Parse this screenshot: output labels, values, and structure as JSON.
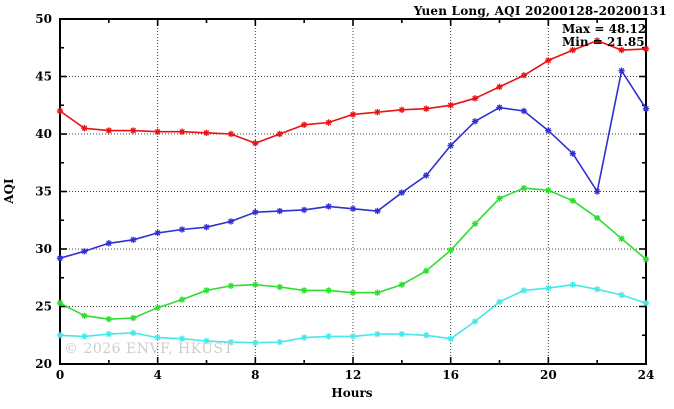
{
  "chart_data": {
    "type": "line",
    "title": "Yuen Long, AQI 20200128-20200131",
    "xlabel": "Hours",
    "ylabel": "AQI",
    "xlim": [
      0,
      24
    ],
    "ylim": [
      20,
      50
    ],
    "grid": true,
    "legend": "none",
    "x_major_ticks": [
      0,
      4,
      8,
      12,
      16,
      20,
      24
    ],
    "x_minor_ticks": [
      2,
      6,
      10,
      14,
      18,
      22
    ],
    "y_major_ticks": [
      20,
      25,
      30,
      35,
      40,
      45,
      50
    ],
    "y_minor_ticks": [
      22.5,
      27.5,
      32.5,
      37.5,
      42.5,
      47.5
    ],
    "x": [
      0,
      1,
      2,
      3,
      4,
      5,
      6,
      7,
      8,
      9,
      10,
      11,
      12,
      13,
      14,
      15,
      16,
      17,
      18,
      19,
      20,
      21,
      22,
      23,
      24
    ],
    "series": [
      {
        "name": "red-line",
        "color": "#ea1212",
        "values": [
          42.0,
          40.5,
          40.3,
          40.3,
          40.2,
          40.2,
          40.1,
          40.0,
          39.2,
          40.0,
          40.8,
          41.0,
          41.7,
          41.9,
          42.1,
          42.2,
          42.5,
          43.1,
          44.1,
          45.1,
          46.4,
          47.3,
          48.12,
          47.3,
          47.4
        ]
      },
      {
        "name": "blue-line",
        "color": "#3030d2",
        "values": [
          29.2,
          29.8,
          30.5,
          30.8,
          31.4,
          31.7,
          31.9,
          32.4,
          33.2,
          33.3,
          33.4,
          33.7,
          33.5,
          33.3,
          34.9,
          36.4,
          39.0,
          41.1,
          42.3,
          42.0,
          40.3,
          38.3,
          35.0,
          45.5,
          42.2
        ]
      },
      {
        "name": "green-line",
        "color": "#2fdd2f",
        "values": [
          25.3,
          24.2,
          23.9,
          24.0,
          24.9,
          25.6,
          26.4,
          26.8,
          26.9,
          26.7,
          26.4,
          26.4,
          26.2,
          26.2,
          26.9,
          28.1,
          29.9,
          32.2,
          34.4,
          35.3,
          35.1,
          34.2,
          32.7,
          30.9,
          29.1
        ]
      },
      {
        "name": "cyan-line",
        "color": "#47e8e8",
        "values": [
          22.5,
          22.4,
          22.6,
          22.7,
          22.3,
          22.2,
          22.0,
          21.9,
          21.85,
          21.9,
          22.3,
          22.4,
          22.4,
          22.6,
          22.6,
          22.5,
          22.2,
          23.7,
          25.4,
          26.4,
          26.6,
          26.9,
          26.5,
          26.0,
          25.3
        ]
      }
    ],
    "annotations": {
      "max_label": "Max = 48.12",
      "min_label": "Min = 21.85"
    },
    "watermark": "© 2026 ENVF, HKUST"
  }
}
